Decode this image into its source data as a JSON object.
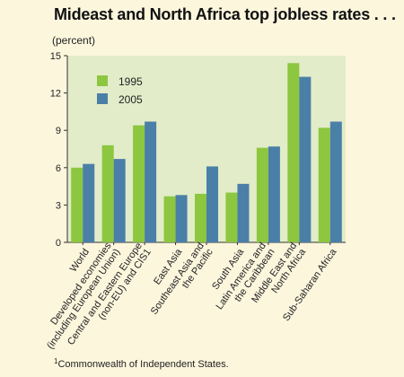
{
  "title": "Mideast and North Africa top jobless rates . . .",
  "unit_label": "(percent)",
  "footnote": {
    "marker": "1",
    "text": "Commonwealth of Independent States."
  },
  "colors": {
    "series_1995": "#8dc63f",
    "series_2005": "#4a7fa8",
    "plot_background": "#e2ecc8",
    "page_background": "#fcf6dd"
  },
  "chart_data": {
    "type": "bar",
    "title": "Mideast and North Africa top jobless rates . . .",
    "ylabel": "(percent)",
    "ylim": [
      0,
      15
    ],
    "yticks": [
      0,
      3,
      6,
      9,
      12,
      15
    ],
    "grid": false,
    "legend_position": "top-left",
    "categories": [
      [
        "World"
      ],
      [
        "Developed economies",
        "(including European Union)"
      ],
      [
        "Central and Eastern Europe",
        "(non-EU) and CIS1"
      ],
      [
        "East Asia"
      ],
      [
        "Southeast Asia and",
        "the Pacific"
      ],
      [
        "South Asia"
      ],
      [
        "Latin America and",
        "the Caribbean"
      ],
      [
        "Middle East and",
        "North Africa"
      ],
      [
        "Sub-Saharan Africa"
      ]
    ],
    "series": [
      {
        "name": "1995",
        "values": [
          6.0,
          7.8,
          9.4,
          3.7,
          3.9,
          4.0,
          7.6,
          14.4,
          9.2
        ]
      },
      {
        "name": "2005",
        "values": [
          6.3,
          6.7,
          9.7,
          3.8,
          6.1,
          4.7,
          7.7,
          13.3,
          9.7
        ]
      }
    ]
  }
}
